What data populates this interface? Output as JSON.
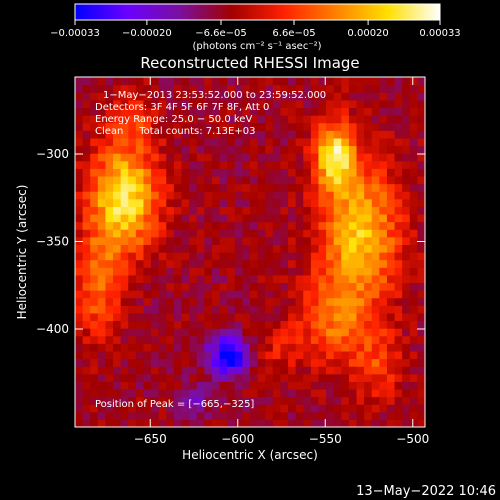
{
  "chart_data": {
    "type": "heatmap",
    "title": "Reconstructed RHESSI Image",
    "xlabel": "Heliocentric X (arcsec)",
    "ylabel": "Heliocentric Y (arcsec)",
    "xlim": [
      -693,
      -493
    ],
    "ylim": [
      -456,
      -256
    ],
    "x_ticks": [
      -650,
      -600,
      -550,
      -500
    ],
    "x_tick_labels": [
      "−650",
      "−600",
      "−550",
      "−500"
    ],
    "y_ticks": [
      -300,
      -350,
      -400
    ],
    "y_tick_labels": [
      "−300",
      "−350",
      "−400"
    ],
    "colorbar": {
      "range": [
        -0.00033,
        0.00033
      ],
      "tick_values": [
        -0.00033,
        -0.0002,
        -6.6e-05,
        6.6e-05,
        0.0002,
        0.00033
      ],
      "tick_labels": [
        "−0.00033",
        "−0.00020",
        "−6.6e−05",
        "6.6e−05",
        "0.00020",
        "0.00033"
      ],
      "unit_label": "(photons cm⁻² s⁻¹ asec⁻²)",
      "colormap": [
        "#0000ff",
        "#6a00ff",
        "#7a10a0",
        "#a00000",
        "#ff2000",
        "#ff8000",
        "#ffe000",
        "#ffffff"
      ]
    },
    "info_lines": [
      "1−May−2013 23:53:52.000 to 23:59:52.000",
      "Detectors: 3F 4F 5F 6F 7F 8F, Att 0",
      "Energy Range: 25.0 − 50.0 keV",
      "Clean     Total counts: 7.13E+03"
    ],
    "peak_label": "Position of Peak = [−665,−325]",
    "peak_position": [
      -665,
      -325
    ],
    "hot_regions": [
      {
        "x": -665,
        "y": -325,
        "sx": 14,
        "sy": 22,
        "amp": 0.00033
      },
      {
        "x": -680,
        "y": -375,
        "sx": 9,
        "sy": 20,
        "amp": 0.00018
      },
      {
        "x": -545,
        "y": -300,
        "sx": 8,
        "sy": 14,
        "amp": 0.0003
      },
      {
        "x": -530,
        "y": -345,
        "sx": 16,
        "sy": 28,
        "amp": 0.00028
      },
      {
        "x": -545,
        "y": -395,
        "sx": 14,
        "sy": 18,
        "amp": 0.00016
      },
      {
        "x": -520,
        "y": -420,
        "sx": 10,
        "sy": 14,
        "amp": 0.00012
      },
      {
        "x": -575,
        "y": -410,
        "sx": 10,
        "sy": 10,
        "amp": 8e-05
      },
      {
        "x": -660,
        "y": -280,
        "sx": 10,
        "sy": 10,
        "amp": 9e-05
      }
    ],
    "cold_regions": [
      {
        "x": -605,
        "y": -415,
        "sx": 8,
        "sy": 8,
        "amp": -0.0003
      },
      {
        "x": -625,
        "y": -440,
        "sx": 6,
        "sy": 6,
        "amp": -0.00012
      }
    ]
  },
  "footer": {
    "timestamp": "13−May−2022 10:46"
  }
}
